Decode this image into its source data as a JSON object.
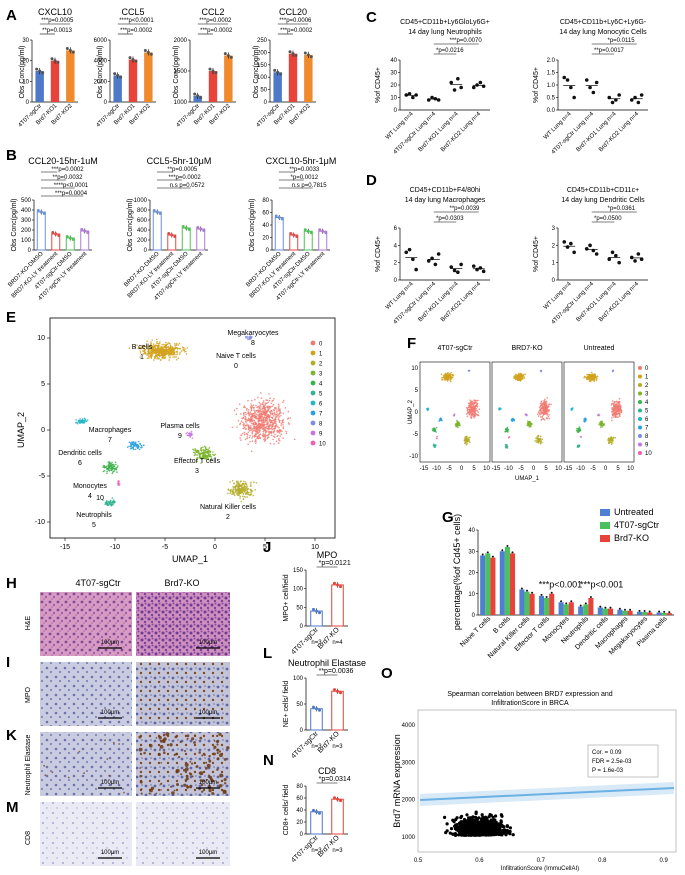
{
  "labels": {
    "A": "A",
    "B": "B",
    "C": "C",
    "D": "D",
    "E": "E",
    "F": "F",
    "G": "G",
    "H": "H",
    "I": "I",
    "J": "J",
    "K": "K",
    "L": "L",
    "M": "M",
    "N": "N",
    "O": "O"
  },
  "common": {
    "ylab_conc": "Obs Conc(pg/ml)",
    "ylab_cd45": "%of CD45+",
    "scale": "100μm"
  },
  "colors": {
    "ctr": "#4e79c8",
    "ko1": "#e8433a",
    "ko2": "#f08a2c",
    "dmso": "#6c92d8",
    "ly_red": "#e04b47",
    "ly_green": "#52c159",
    "ly_purple": "#b07ad0",
    "untreated": "#4f7fd3",
    "sgctr": "#4cbf5e",
    "brd7": "#e8433a"
  },
  "panelA": {
    "groups": [
      "4T07-sgCtr",
      "Brd7-KO1",
      "Brd7-KO2"
    ],
    "charts": [
      {
        "title": "CXCL10",
        "ticks": [
          "30",
          "20",
          "10",
          "0"
        ],
        "ylim": [
          0,
          30
        ],
        "values": [
          15,
          20,
          25
        ],
        "sig": [
          "***p=0.0005",
          "**p=0.0013"
        ]
      },
      {
        "title": "CCL5",
        "ticks": [
          "6000",
          "4000",
          "2000",
          "0"
        ],
        "ylim": [
          0,
          7000
        ],
        "values": [
          3000,
          4800,
          5600
        ],
        "sig": [
          "****p<0.0001",
          "***p=0.0002"
        ]
      },
      {
        "title": "CCL2",
        "ticks": [
          "2000",
          "1500",
          "1000"
        ],
        "ylim": [
          1000,
          2000
        ],
        "values": [
          1100,
          1500,
          1750
        ],
        "sig": [
          "***p=0.0002",
          "***p=0.0002"
        ]
      },
      {
        "title": "CCL20",
        "ticks": [
          "250",
          "200",
          "150",
          "100",
          "50",
          "0"
        ],
        "ylim": [
          0,
          250
        ],
        "values": [
          120,
          195,
          190
        ],
        "sig": [
          "***p=0.0006",
          "***p=0.0002"
        ]
      }
    ]
  },
  "panelB": {
    "charts": [
      {
        "title": "CCL20-15hr-1uM",
        "ticks": [
          "500",
          "400",
          "300",
          "200",
          "100",
          "0"
        ],
        "ylim": [
          0,
          500
        ],
        "groups": [
          "BRD7-KO-DMSO",
          "BRD7-KO-LY treatment",
          "4T07-sgCtr-DMSO",
          "4T07-sgCtr-LY treatment"
        ],
        "values": [
          380,
          160,
          120,
          190
        ],
        "sig": [
          "***p=0.0002",
          "**p=0.0032",
          "****p<0.0001",
          "***p=0.0004"
        ]
      },
      {
        "title": "CCL5-5hr-10μM",
        "ticks": [
          "1000",
          "800",
          "600",
          "400",
          "200",
          "0"
        ],
        "ylim": [
          0,
          1000
        ],
        "groups": [
          "BRD7-KO-DMSO",
          "BRD7-KO-LY treatment",
          "4T07-sgCtr-DMSO",
          "4T07-sgCtr-LY treatment"
        ],
        "values": [
          760,
          300,
          440,
          420
        ],
        "sig": [
          "**p=0.0005",
          "***p=0.0002",
          "n.s p=0.0572"
        ]
      },
      {
        "title": "CXCL10-5hr-1μM",
        "ticks": [
          "80",
          "60",
          "40",
          "20",
          "0"
        ],
        "ylim": [
          0,
          80
        ],
        "groups": [
          "BRD7-KO-DMSO",
          "BRD7-KO-LY treatment",
          "4T07-sgCtr-DMSO",
          "4T07-sgCtr-LY treatment"
        ],
        "values": [
          52,
          24,
          30,
          30
        ],
        "sig": [
          "**p=0.0033",
          "*p=0.0012",
          "n.s p=0.7815"
        ]
      }
    ]
  },
  "panelC": {
    "groups": [
      "WT Lung n=4",
      "4T07-sgCtr Lung n=4",
      "Brd7-KO1 Lung n=4",
      "Brd7-KO2 Lung n=4"
    ],
    "charts": [
      {
        "title1": "CD45+CD11b+Ly6GloLy6G+",
        "title2": "14 day lung Neutrophils",
        "ticks": [
          "40",
          "30",
          "20",
          "10",
          "0"
        ],
        "ylim": [
          0,
          40
        ],
        "points": [
          [
            12,
            13,
            10,
            12
          ],
          [
            8,
            10,
            9,
            8
          ],
          [
            22,
            16,
            25,
            18
          ],
          [
            18,
            20,
            22,
            19
          ]
        ],
        "sig": [
          "***p=0.0070",
          "*p=0.0216"
        ]
      },
      {
        "title1": "CD45+CD11b+Ly6C+Ly6G-",
        "title2": "14 day lung Monocytic Cells",
        "ticks": [
          "2.0",
          "1.5",
          "1.0",
          "0.5",
          "0.0"
        ],
        "ylim": [
          0,
          2
        ],
        "points": [
          [
            1.3,
            1.2,
            0.9,
            0.5
          ],
          [
            1.2,
            0.9,
            0.7,
            1.1
          ],
          [
            0.5,
            0.3,
            0.4,
            0.6
          ],
          [
            0.4,
            0.5,
            0.3,
            0.6
          ]
        ],
        "sig": [
          "*p=0.0115",
          "**p=0.0017"
        ]
      }
    ]
  },
  "panelD": {
    "groups": [
      "WT Lung n=4",
      "4T07-sgCtr Lung n=4",
      "Brd7-KO1 Lung n=4",
      "Brd7-KO2 Lung n=4"
    ],
    "charts": [
      {
        "title1": "CD45+CD11b+F4/80hi",
        "title2": "14 day lung Macrophages",
        "ticks": [
          "6",
          "4",
          "2",
          "0"
        ],
        "ylim": [
          0,
          6
        ],
        "points": [
          [
            3.2,
            3.5,
            2.4,
            1.2
          ],
          [
            2.2,
            2.5,
            1.8,
            3.0
          ],
          [
            1.5,
            1.1,
            0.9,
            1.8
          ],
          [
            1.6,
            1.2,
            1.4,
            1.0
          ]
        ],
        "sig": [
          "**p=0.0039",
          "*p=0.0303"
        ]
      },
      {
        "title1": "CD45+CD11b+CD11c+",
        "title2": "14 day lung Dendritic Cells",
        "ticks": [
          "3",
          "2",
          "1",
          "0"
        ],
        "ylim": [
          0,
          3
        ],
        "points": [
          [
            2.2,
            1.9,
            2.1,
            1.6
          ],
          [
            1.8,
            2.0,
            1.7,
            1.5
          ],
          [
            1.2,
            1.6,
            1.4,
            1.0
          ],
          [
            1.3,
            1.1,
            1.5,
            1.2
          ]
        ],
        "sig": [
          "*p=0.0361",
          "*p=0.0500"
        ]
      }
    ]
  },
  "panelE": {
    "ylabel": "UMAP_2",
    "xlabel": "UMAP_1",
    "xticks": [
      "-15",
      "-10",
      "-5",
      "0",
      "5",
      "10"
    ],
    "yticks": [
      "10",
      "5",
      "0",
      "-5",
      "-10"
    ],
    "clusters": [
      {
        "id": "0",
        "name": "Naive T cells",
        "color": "#f07a72"
      },
      {
        "id": "1",
        "name": "B cells",
        "color": "#d2a21d"
      },
      {
        "id": "2",
        "name": "Natural Killer cells",
        "color": "#b5ad2a"
      },
      {
        "id": "3",
        "name": "Effector T cells",
        "color": "#7cb42d"
      },
      {
        "id": "4",
        "name": "Monocytes",
        "color": "#39b24a"
      },
      {
        "id": "5",
        "name": "Neutrophils",
        "color": "#33b38f"
      },
      {
        "id": "6",
        "name": "Dendritic cells",
        "color": "#23b5c7"
      },
      {
        "id": "7",
        "name": "Macrophages",
        "color": "#2aa0e0"
      },
      {
        "id": "8",
        "name": "Megakaryocytes",
        "color": "#7b8de8"
      },
      {
        "id": "9",
        "name": "Plasma cells",
        "color": "#c974e0"
      },
      {
        "id": "10",
        "name": "",
        "color": "#ee5fb0"
      }
    ],
    "legend": [
      "0",
      "1",
      "2",
      "3",
      "4",
      "5",
      "6",
      "7",
      "8",
      "9",
      "10"
    ]
  },
  "panelF": {
    "titles": [
      "4T07-sgCtr",
      "BRD7-KO",
      "Untreated"
    ],
    "ylabel": "UMAP_2",
    "xlabel": "UMAP_1",
    "xticks": [
      "-15",
      "-10",
      "-5",
      "0",
      "5",
      "10"
    ],
    "yticks": [
      "10",
      "5",
      "0",
      "-5",
      "-10"
    ],
    "legend": [
      "0",
      "1",
      "2",
      "3",
      "4",
      "5",
      "6",
      "7",
      "8",
      "9",
      "10"
    ]
  },
  "panelG": {
    "ylabel": "percentage(%of Cd45+ cells)",
    "ticks": [
      "40",
      "30",
      "20",
      "10",
      "0"
    ],
    "ylim": [
      0,
      40
    ],
    "legend": [
      "Untreated",
      "4T07-sgCtr",
      "Brd7-KO"
    ],
    "categories": [
      "Naive T cells",
      "B cells",
      "Natural Killer cells",
      "Effector T cells",
      "Monocytes",
      "Neutrophils",
      "Dendritic cells",
      "Macrophages",
      "Megakaryocytes",
      "Plasma cells"
    ],
    "series": [
      {
        "name": "Untreated",
        "values": [
          28,
          30,
          12,
          9,
          6,
          4,
          3.5,
          2.5,
          1.5,
          1.2
        ]
      },
      {
        "name": "4T07-sgCtr",
        "values": [
          29,
          32,
          11,
          8,
          5,
          5,
          3,
          2,
          1.4,
          1
        ]
      },
      {
        "name": "Brd7-KO",
        "values": [
          27,
          29,
          10,
          10,
          6,
          8,
          3,
          2,
          1.2,
          0.9
        ]
      }
    ],
    "sig": [
      "***p<0.001",
      "***p<0.001"
    ]
  },
  "panelH": {
    "row_label": "H&E",
    "col1": "4T07-sgCtr",
    "col2": "Brd7-KO"
  },
  "panelI": {
    "row_label": "MPO"
  },
  "panelK": {
    "row_label": "Neutrophil Elastase"
  },
  "panelM": {
    "row_label": "CD8"
  },
  "panelJ": {
    "title": "MPO",
    "ylabel": "MPO+ cell/field",
    "ticks": [
      "150",
      "100",
      "50",
      "0"
    ],
    "ylim": [
      0,
      150
    ],
    "groups": [
      "4T07-sgCtr",
      "Brd7-KO"
    ],
    "n": [
      "n=3",
      "n=4"
    ],
    "values": [
      40,
      110
    ],
    "sig": "*p=0.0121"
  },
  "panelL": {
    "title": "Neutrophil Elastase",
    "ylabel": "NE+ cells/ field",
    "ticks": [
      "100",
      "50",
      "0"
    ],
    "ylim": [
      0,
      110
    ],
    "groups": [
      "4T07-sgCtr",
      "Brd7-KO"
    ],
    "n": [
      "n=3",
      "n=3"
    ],
    "values": [
      45,
      82
    ],
    "sig": "**p=0.0036"
  },
  "panelN": {
    "title": "CD8",
    "ylabel": "CD8+ cells/ field",
    "ticks": [
      "80",
      "60",
      "40",
      "20",
      "0"
    ],
    "ylim": [
      0,
      80
    ],
    "groups": [
      "4T07-sgCtr",
      "Brd7-KO"
    ],
    "n": [
      "n=3",
      "n=3"
    ],
    "values": [
      37,
      58
    ],
    "sig": "*p=0.0314"
  },
  "panelO": {
    "title1": "Spearman correlation between BRD7 expression and",
    "title2": "InfiltrationScore in BRCA",
    "ylabel": "Brd7 mRNA expression",
    "xlabel": "InfiltrationScore (ImmuCellAI)",
    "xticks": [
      "0.5",
      "0.6",
      "0.7",
      "0.8",
      "0.9"
    ],
    "yticks": [
      "4000",
      "3000",
      "2000",
      "1000"
    ],
    "stats": [
      "Cor. = 0.09",
      "FDR = 2.5e-03",
      "P = 1.6e-03"
    ]
  }
}
